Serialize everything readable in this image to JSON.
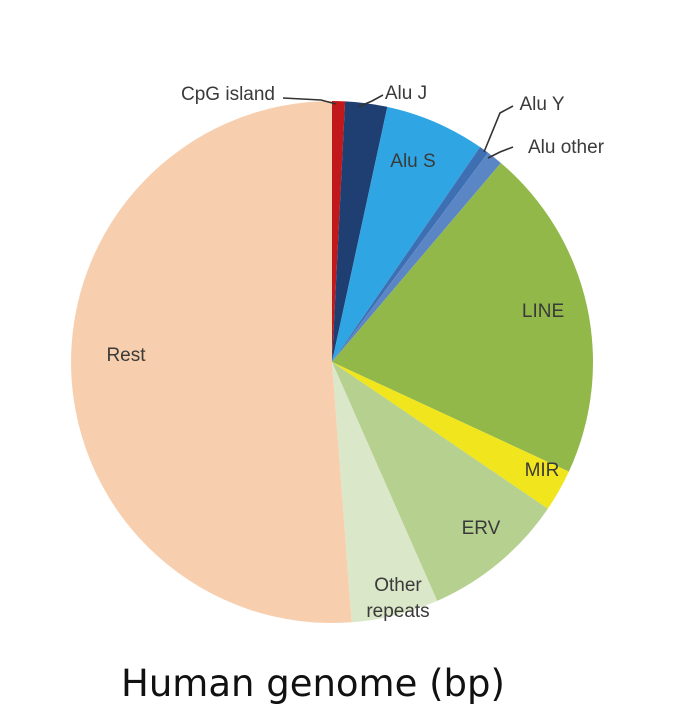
{
  "chart_data": {
    "type": "pie",
    "title": "Human genome (bp)",
    "slices": [
      {
        "label": "CpG island",
        "value": 0.8,
        "color": "#c0181b"
      },
      {
        "label": "Alu J",
        "value": 2.6,
        "color": "#1f3f73"
      },
      {
        "label": "Alu S",
        "value": 6.2,
        "color": "#2fa6e3"
      },
      {
        "label": "Alu Y",
        "value": 0.6,
        "color": "#3f6fb3"
      },
      {
        "label": "Alu other",
        "value": 1.0,
        "color": "#5b86c6"
      },
      {
        "label": "LINE",
        "value": 20.7,
        "color": "#92b84a"
      },
      {
        "label": "MIR",
        "value": 2.6,
        "color": "#f1e51d"
      },
      {
        "label": "ERV",
        "value": 8.9,
        "color": "#b5d08f"
      },
      {
        "label": "Other\nrepeats",
        "value": 5.4,
        "color": "#dbe7c9"
      },
      {
        "label": "Rest",
        "value": 51.2,
        "color": "#f8cfae"
      }
    ]
  }
}
